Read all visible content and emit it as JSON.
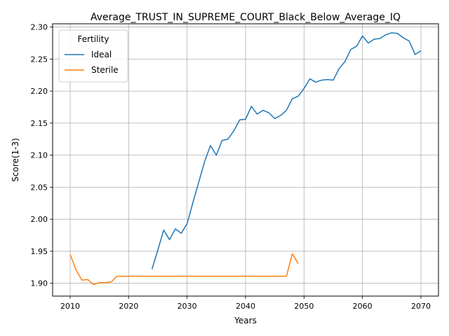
{
  "chart_data": {
    "type": "line",
    "title": "Average_TRUST_IN_SUPREME_COURT_Black_Below_Average_IQ",
    "xlabel": "Years",
    "ylabel": "Score(1-3)",
    "xlim": [
      2007,
      2073
    ],
    "ylim": [
      1.88,
      2.305
    ],
    "xticks": [
      2010,
      2020,
      2030,
      2040,
      2050,
      2060,
      2070
    ],
    "yticks": [
      1.9,
      1.95,
      2.0,
      2.05,
      2.1,
      2.15,
      2.2,
      2.25,
      2.3
    ],
    "grid": true,
    "legend": {
      "title": "Fertility",
      "placement": "top-left"
    },
    "series": [
      {
        "name": "Ideal",
        "color": "#1f77b4",
        "x": [
          2024,
          2025,
          2026,
          2027,
          2028,
          2029,
          2030,
          2031,
          2032,
          2033,
          2034,
          2035,
          2036,
          2037,
          2038,
          2039,
          2040,
          2041,
          2042,
          2043,
          2044,
          2045,
          2046,
          2047,
          2048,
          2049,
          2050,
          2051,
          2052,
          2053,
          2054,
          2055,
          2056,
          2057,
          2058,
          2059,
          2060,
          2061,
          2062,
          2063,
          2064,
          2065,
          2066,
          2067,
          2068,
          2069,
          2070
        ],
        "values": [
          1.922,
          1.952,
          1.983,
          1.968,
          1.985,
          1.978,
          1.993,
          2.026,
          2.058,
          2.09,
          2.115,
          2.1,
          2.123,
          2.125,
          2.138,
          2.155,
          2.156,
          2.176,
          2.164,
          2.17,
          2.166,
          2.157,
          2.162,
          2.17,
          2.188,
          2.192,
          2.204,
          2.219,
          2.214,
          2.217,
          2.218,
          2.217,
          2.235,
          2.246,
          2.265,
          2.27,
          2.286,
          2.275,
          2.281,
          2.282,
          2.288,
          2.291,
          2.29,
          2.283,
          2.278,
          2.257,
          2.263
        ]
      },
      {
        "name": "Sterile",
        "color": "#ff7f0e",
        "x": [
          2010,
          2011,
          2012,
          2013,
          2014,
          2015,
          2016,
          2017,
          2018,
          2019,
          2020,
          2021,
          2022,
          2023,
          2024,
          2025,
          2026,
          2027,
          2028,
          2029,
          2030,
          2031,
          2032,
          2033,
          2034,
          2035,
          2036,
          2037,
          2038,
          2039,
          2040,
          2041,
          2042,
          2043,
          2044,
          2045,
          2046,
          2047,
          2048,
          2049
        ],
        "values": [
          1.945,
          1.921,
          1.905,
          1.906,
          1.898,
          1.901,
          1.901,
          1.902,
          1.911,
          1.911,
          1.911,
          1.911,
          1.911,
          1.911,
          1.911,
          1.911,
          1.911,
          1.911,
          1.911,
          1.911,
          1.911,
          1.911,
          1.911,
          1.911,
          1.911,
          1.911,
          1.911,
          1.911,
          1.911,
          1.911,
          1.911,
          1.911,
          1.911,
          1.911,
          1.911,
          1.911,
          1.911,
          1.911,
          1.946,
          1.931
        ]
      }
    ]
  }
}
